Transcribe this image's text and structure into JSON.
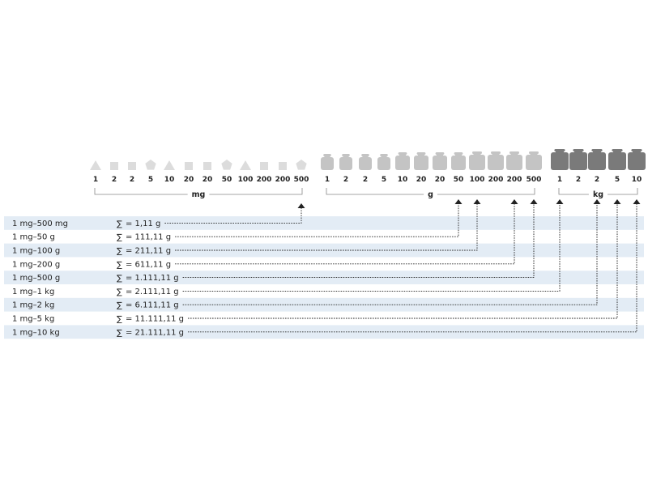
{
  "groups": [
    {
      "unit": "mg",
      "values": [
        "1",
        "2",
        "2",
        "5",
        "10",
        "20",
        "20",
        "50",
        "100",
        "200",
        "200",
        "500"
      ],
      "shapes": [
        "triangle",
        "square",
        "square",
        "pentagon",
        "triangle",
        "square",
        "square",
        "pentagon",
        "triangle",
        "square",
        "square",
        "pentagon"
      ],
      "color": "#dcdcdc"
    },
    {
      "unit": "g",
      "values": [
        "1",
        "2",
        "2",
        "5",
        "10",
        "20",
        "20",
        "50",
        "100",
        "200",
        "200",
        "500"
      ],
      "shapes": [
        "weight-s",
        "weight-s",
        "weight-s",
        "weight-s",
        "weight-m",
        "weight-m",
        "weight-m",
        "weight-m",
        "weight-l",
        "weight-l",
        "weight-l",
        "weight-l"
      ],
      "color": "#c4c4c4"
    },
    {
      "unit": "kg",
      "values": [
        "1",
        "2",
        "2",
        "5",
        "10"
      ],
      "shapes": [
        "weight-xl",
        "weight-xl",
        "weight-xl",
        "weight-xl",
        "weight-xl"
      ],
      "color": "#7a7a7a"
    }
  ],
  "rows": [
    {
      "range": "1 mg–500 mg",
      "sum": "= 1,11 g",
      "target": [
        0,
        11
      ]
    },
    {
      "range": "1 mg–50 g",
      "sum": "= 111,11 g",
      "target": [
        1,
        7
      ]
    },
    {
      "range": "1 mg–100 g",
      "sum": "= 211,11 g",
      "target": [
        1,
        8
      ]
    },
    {
      "range": "1 mg–200 g",
      "sum": "= 611,11 g",
      "target": [
        1,
        10
      ]
    },
    {
      "range": "1 mg–500 g",
      "sum": "= 1.111,11 g",
      "target": [
        1,
        11
      ]
    },
    {
      "range": "1 mg–1 kg",
      "sum": "= 2.111,11 g",
      "target": [
        2,
        0
      ]
    },
    {
      "range": "1 mg–2 kg",
      "sum": "= 6.111,11 g",
      "target": [
        2,
        2
      ]
    },
    {
      "range": "1 mg–5 kg",
      "sum": "= 11.111,11 g",
      "target": [
        2,
        3
      ]
    },
    {
      "range": "1 mg–10 kg",
      "sum": "= 21.111,11 g",
      "target": [
        2,
        4
      ]
    }
  ],
  "sum_symbol": "∑",
  "colors": {
    "band": "#e3ecf5",
    "bracket": "#888888",
    "leader": "#222222"
  }
}
